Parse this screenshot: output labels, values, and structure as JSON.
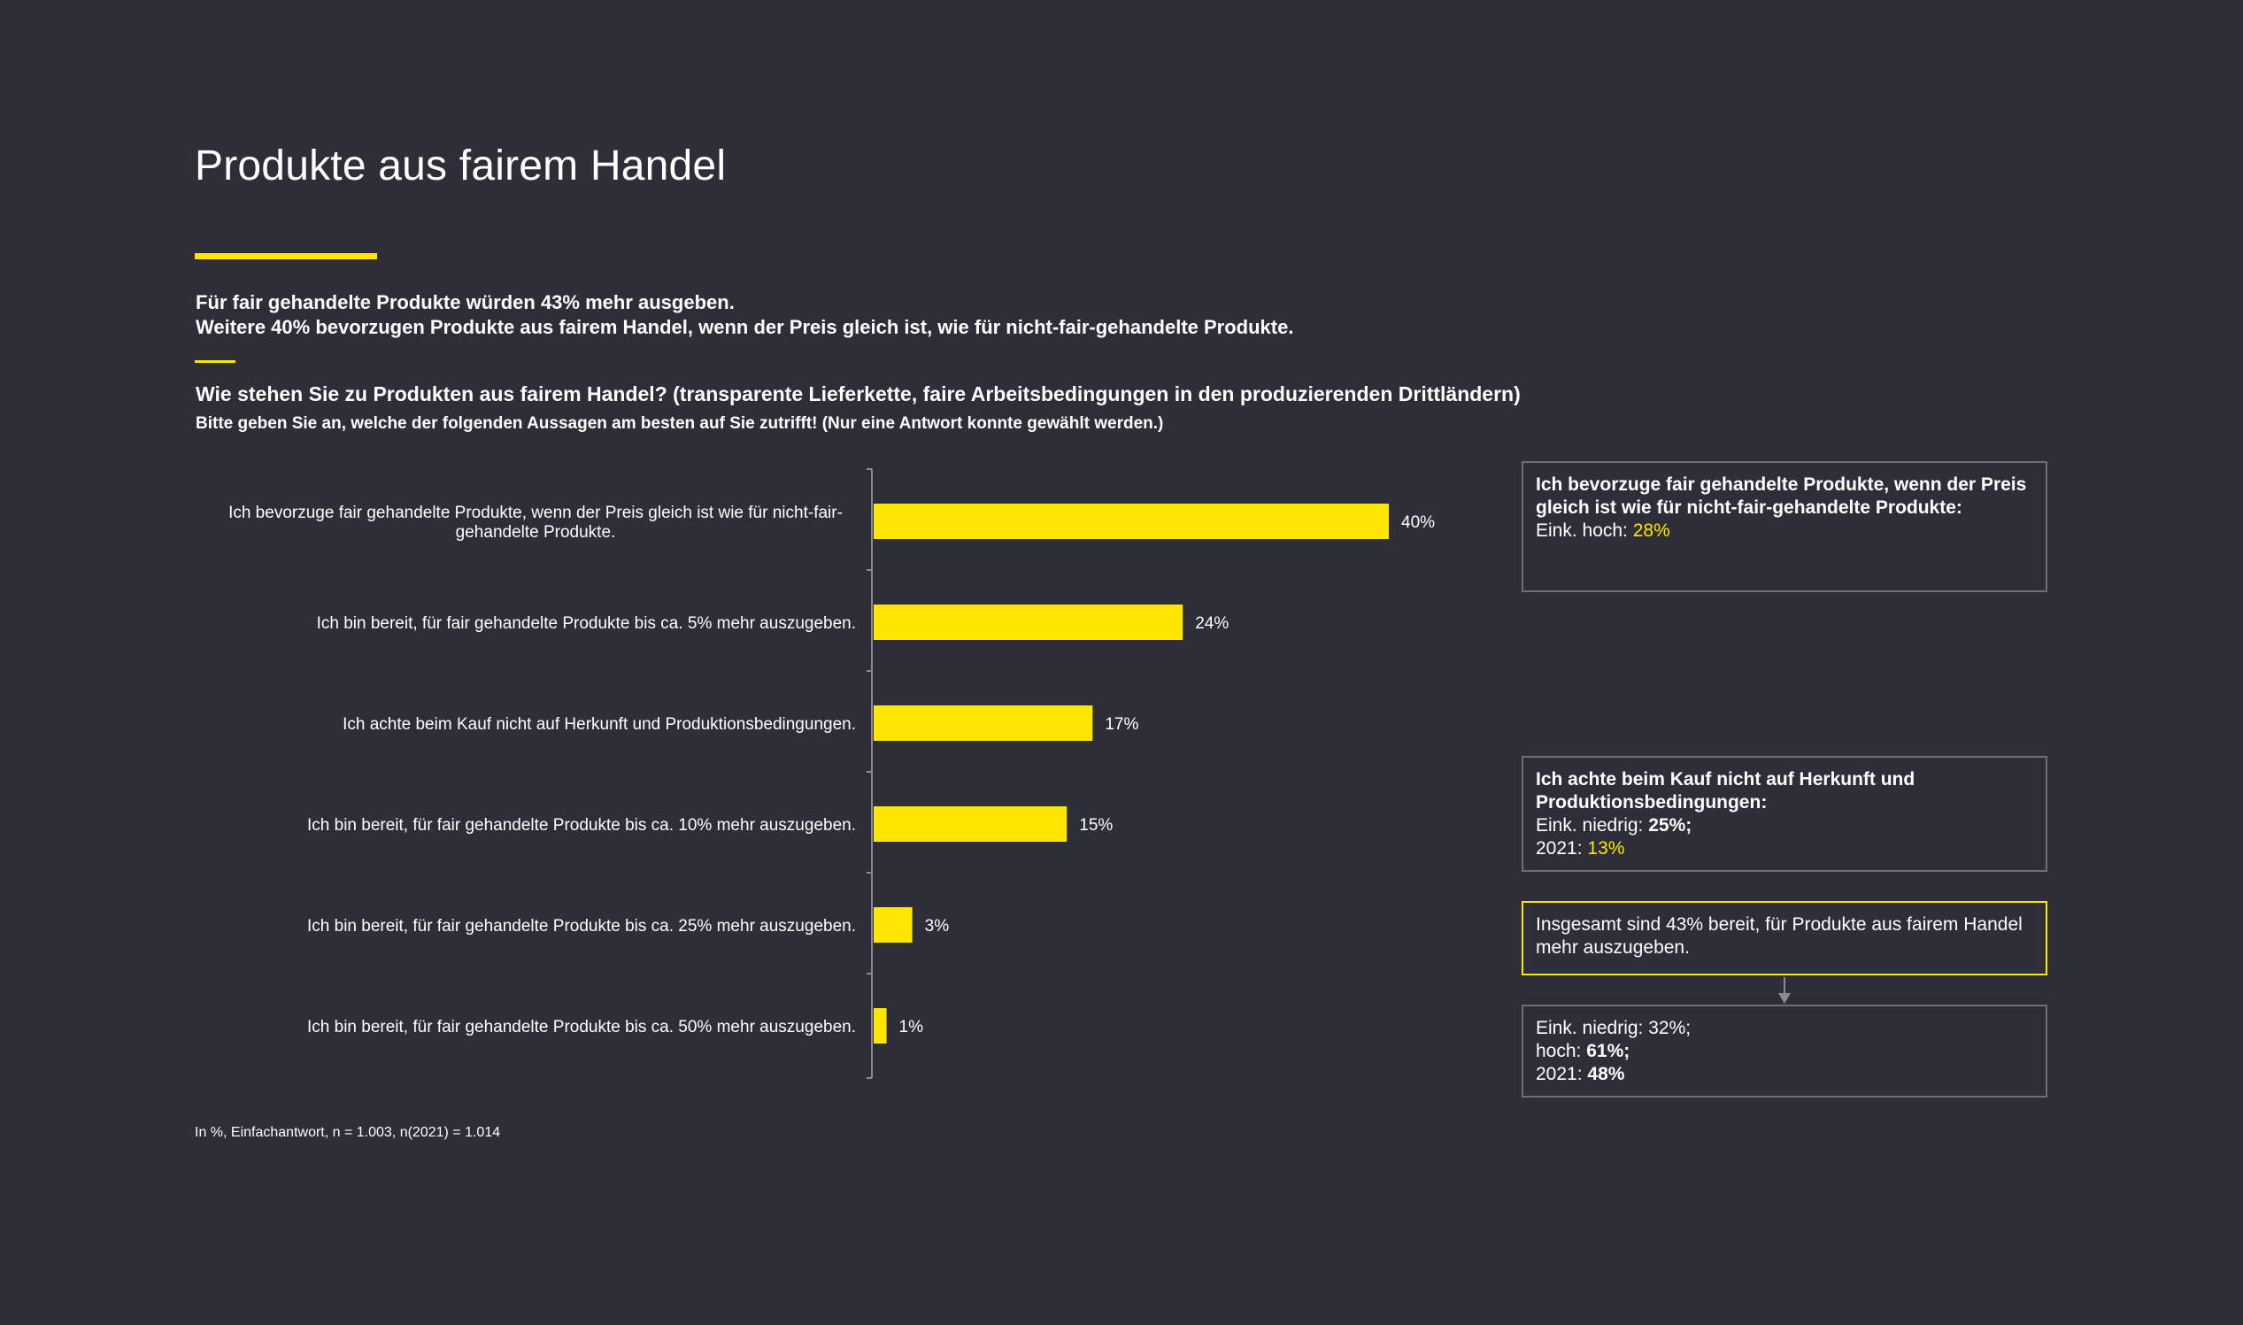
{
  "title": "Produkte aus fairem Handel",
  "summary": {
    "line1": "Für fair gehandelte Produkte würden 43% mehr ausgeben.",
    "line2": "Weitere 40% bevorzugen Produkte aus fairem Handel, wenn der Preis gleich ist, wie für nicht-fair-gehandelte Produkte."
  },
  "question": "Wie stehen Sie zu Produkten aus fairem Handel? (transparente Lieferkette, faire Arbeitsbedingungen in den produzierenden Drittländern)",
  "instruction": "Bitte geben Sie an, welche der folgenden Aussagen am besten auf Sie zutrifft! (Nur eine Antwort konnte gewählt werden.)",
  "footnote": "In %, Einfachantwort, n = 1.003, n(2021) = 1.014",
  "colors": {
    "background": "#2e2e38",
    "accent": "#ffe600",
    "text": "#ffffff",
    "box_border": "#6e6e78"
  },
  "chart_data": {
    "type": "bar",
    "orientation": "horizontal",
    "categories": [
      "Ich bevorzuge fair gehandelte Produkte, wenn der Preis gleich ist wie für nicht-fair-gehandelte Produkte.",
      "Ich bin bereit, für fair gehandelte Produkte bis ca. 5% mehr auszugeben.",
      "Ich achte beim Kauf nicht auf Herkunft und Produktionsbedingungen.",
      "Ich bin bereit, für fair gehandelte Produkte bis ca. 10% mehr auszugeben.",
      "Ich bin bereit, für fair gehandelte Produkte bis ca. 25% mehr auszugeben.",
      "Ich bin bereit, für fair gehandelte Produkte bis ca. 50% mehr auszugeben."
    ],
    "category_lines": [
      [
        "Ich bevorzuge fair gehandelte Produkte, wenn der Preis gleich ist wie für nicht-fair-",
        "gehandelte Produkte."
      ],
      [
        "Ich bin bereit, für fair gehandelte Produkte bis ca. 5% mehr auszugeben."
      ],
      [
        "Ich achte beim Kauf nicht auf Herkunft und Produktionsbedingungen."
      ],
      [
        "Ich bin bereit, für fair gehandelte Produkte bis ca. 10% mehr auszugeben."
      ],
      [
        "Ich bin bereit, für fair gehandelte Produkte bis ca. 25% mehr auszugeben."
      ],
      [
        "Ich bin bereit, für fair gehandelte Produkte bis ca. 50% mehr auszugeben."
      ]
    ],
    "values": [
      40,
      24,
      17,
      15,
      3,
      1
    ],
    "value_labels": [
      "40%",
      "24%",
      "17%",
      "15%",
      "3%",
      "1%"
    ],
    "unit": "%",
    "bar_color": "#ffe600",
    "xlim": [
      0,
      40
    ]
  },
  "boxes": {
    "b1": {
      "heading": "Ich bevorzuge fair gehandelte Produkte, wenn der Preis gleich ist wie für nicht-fair-gehandelte Produkte:",
      "label": "Eink. hoch: ",
      "value": "28%"
    },
    "b2": {
      "heading": "Ich achte beim Kauf nicht auf Herkunft und Produktionsbedingungen:",
      "l1_label": "Eink. niedrig: ",
      "l1_value": "25%;",
      "l2_label": "2021: ",
      "l2_value": "13%"
    },
    "b3": {
      "text": "Insgesamt sind 43% bereit, für Produkte aus fairem Handel mehr auszugeben."
    },
    "b4": {
      "l1": "Eink. niedrig: 32%;",
      "l2_label": "hoch: ",
      "l2_value": "61%;",
      "l3_label": "2021: ",
      "l3_value": "48%"
    }
  }
}
